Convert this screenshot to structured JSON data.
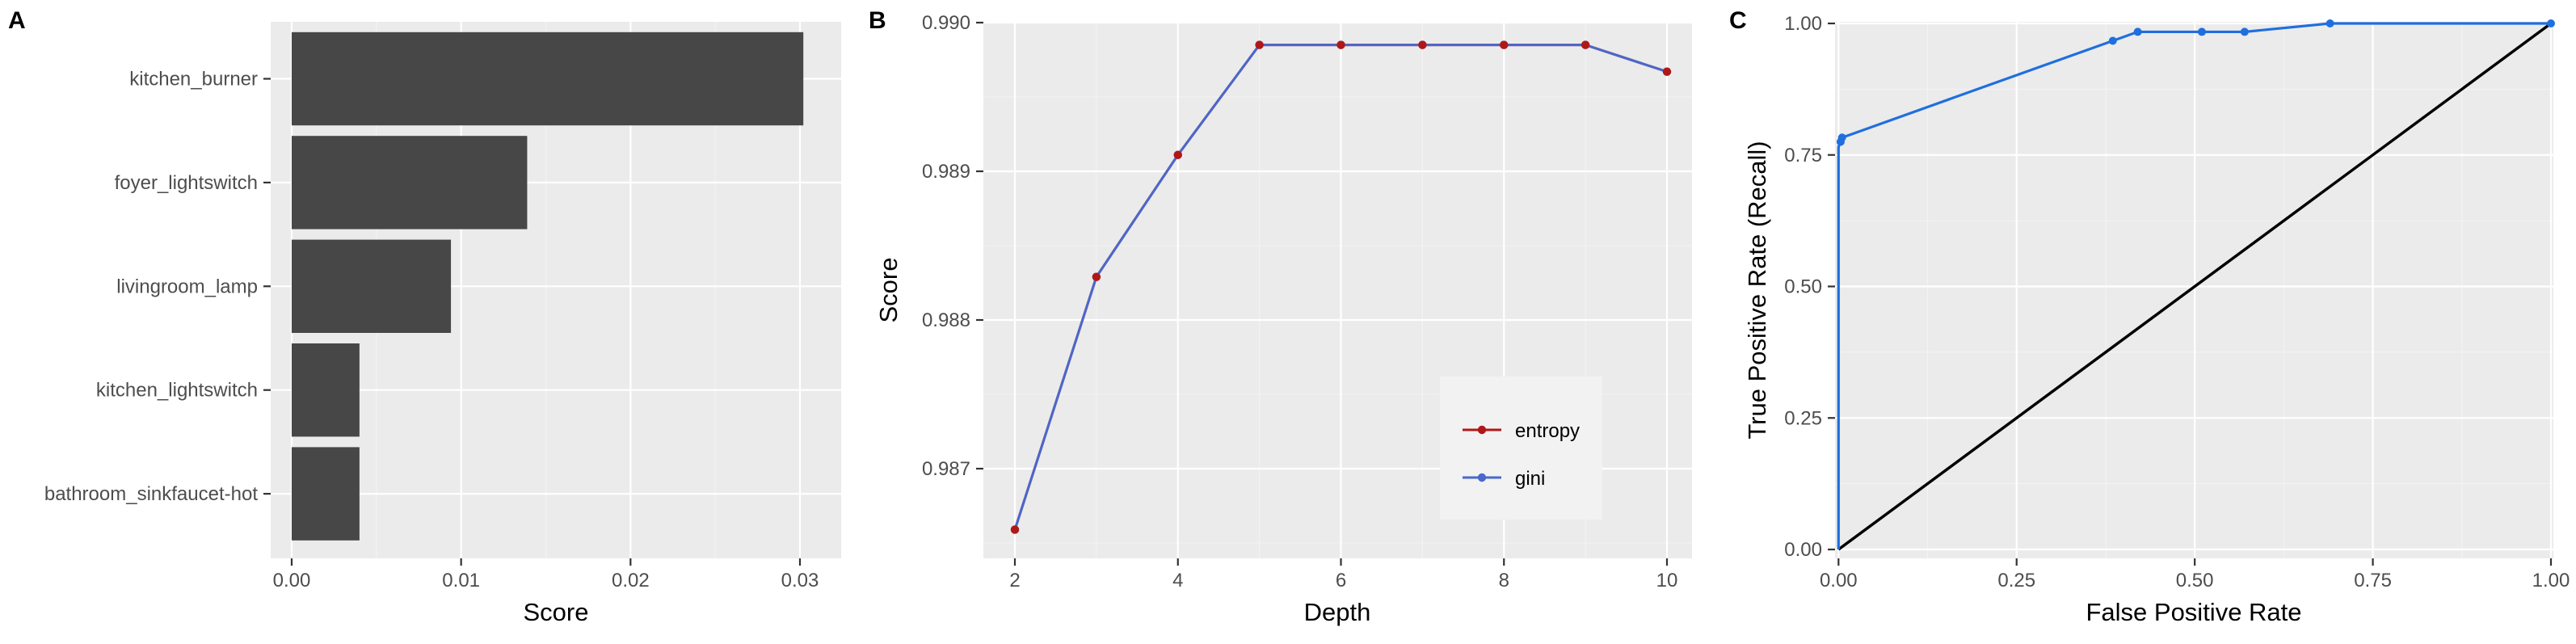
{
  "panels": {
    "a": {
      "letter": "A",
      "chart_data": {
        "type": "bar",
        "orientation": "horizontal",
        "categories": [
          "kitchen_burner",
          "foyer_lightswitch",
          "livingroom_lamp",
          "kitchen_lightswitch",
          "bathroom_sinkfaucet-hot"
        ],
        "values": [
          0.0302,
          0.0139,
          0.0094,
          0.004,
          0.004
        ],
        "xlabel": "Score",
        "ylabel": "",
        "xlim": [
          0,
          0.031
        ],
        "xticks": [
          "0.00",
          "0.01",
          "0.02",
          "0.03"
        ],
        "grid": true,
        "colors": {
          "bar": "#474747",
          "panel_background": "#ebebeb"
        }
      }
    },
    "b": {
      "letter": "B",
      "chart_data": {
        "type": "line",
        "x": [
          2,
          3,
          4,
          5,
          6,
          7,
          8,
          9,
          10
        ],
        "series": [
          {
            "name": "entropy",
            "color": "#b01818",
            "values": [
              0.98659,
              0.98829,
              0.98911,
              0.98985,
              0.98985,
              0.98985,
              0.98985,
              0.98985,
              0.98967
            ]
          },
          {
            "name": "gini",
            "color": "#4a68cc",
            "values": [
              0.98659,
              0.98829,
              0.98911,
              0.98985,
              0.98985,
              0.98985,
              0.98985,
              0.98985,
              0.98967
            ]
          }
        ],
        "xlabel": "Depth",
        "ylabel": "Score",
        "xlim": [
          1.7,
          10.3
        ],
        "ylim": [
          0.98646,
          0.99003
        ],
        "xticks": [
          "2",
          "4",
          "6",
          "8",
          "10"
        ],
        "yticks": [
          "0.987",
          "0.988",
          "0.989",
          "0.990"
        ],
        "legend": {
          "position": "bottom-right inside",
          "entries": [
            "entropy",
            "gini"
          ]
        },
        "grid": true,
        "colors": {
          "panel_background": "#ebebeb"
        }
      }
    },
    "c": {
      "letter": "C",
      "chart_data": {
        "type": "line",
        "series": [
          {
            "name": "roc",
            "color": "#1f6fde",
            "x": [
              0,
              0,
              0.003,
              0.005,
              0.385,
              0.42,
              0.51,
              0.57,
              0.69,
              1.0
            ],
            "y": [
              0,
              0.765,
              0.775,
              0.783,
              0.967,
              0.984,
              0.984,
              0.984,
              1.0,
              1.0
            ],
            "points_x": [
              0.003,
              0.005,
              0.385,
              0.42,
              0.51,
              0.57,
              0.69,
              1.0
            ],
            "points_y": [
              0.775,
              0.783,
              0.967,
              0.984,
              0.984,
              0.984,
              1.0,
              1.0
            ]
          },
          {
            "name": "diagonal",
            "color": "#000000",
            "x": [
              0,
              1
            ],
            "y": [
              0,
              1
            ]
          }
        ],
        "xlabel": "False Positive Rate",
        "ylabel": "True Positive Rate (Recall)",
        "xlim": [
          -0.008,
          1.008
        ],
        "ylim": [
          -0.008,
          1.008
        ],
        "xticks": [
          "0.00",
          "0.25",
          "0.50",
          "0.75",
          "1.00"
        ],
        "yticks": [
          "0.00",
          "0.25",
          "0.50",
          "0.75",
          "1.00"
        ],
        "grid": true,
        "colors": {
          "panel_background": "#ebebeb"
        }
      }
    }
  }
}
